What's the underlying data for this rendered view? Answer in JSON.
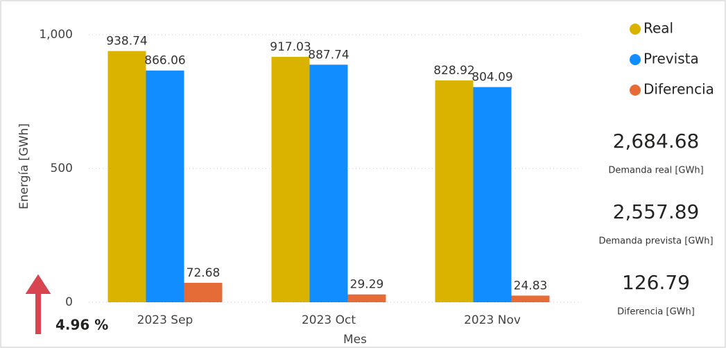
{
  "chart_data": {
    "type": "bar",
    "y_axis_label": "Energía [GWh]",
    "x_axis_label": "Mes",
    "categories": [
      "2023 Sep",
      "2023 Oct",
      "2023 Nov"
    ],
    "series": [
      {
        "name": "Real",
        "color": "#d9b300",
        "values": [
          938.74,
          917.03,
          828.92
        ]
      },
      {
        "name": "Prevista",
        "color": "#118dff",
        "values": [
          866.06,
          887.74,
          804.09
        ]
      },
      {
        "name": "Diferencia",
        "color": "#e66c37",
        "values": [
          72.68,
          29.29,
          24.83
        ]
      }
    ],
    "ylim": [
      0,
      1000
    ],
    "yticks": [
      0,
      500,
      {
        "value": 1000,
        "label": "1,000"
      }
    ],
    "grid": true
  },
  "kpis": [
    {
      "value": "2,684.68",
      "label": "Demanda real [GWh]"
    },
    {
      "value": "2,557.89",
      "label": "Demanda prevista [GWh]"
    },
    {
      "value": "126.79",
      "label": "Diferencia [GWh]"
    }
  ],
  "change": "4.96 %"
}
